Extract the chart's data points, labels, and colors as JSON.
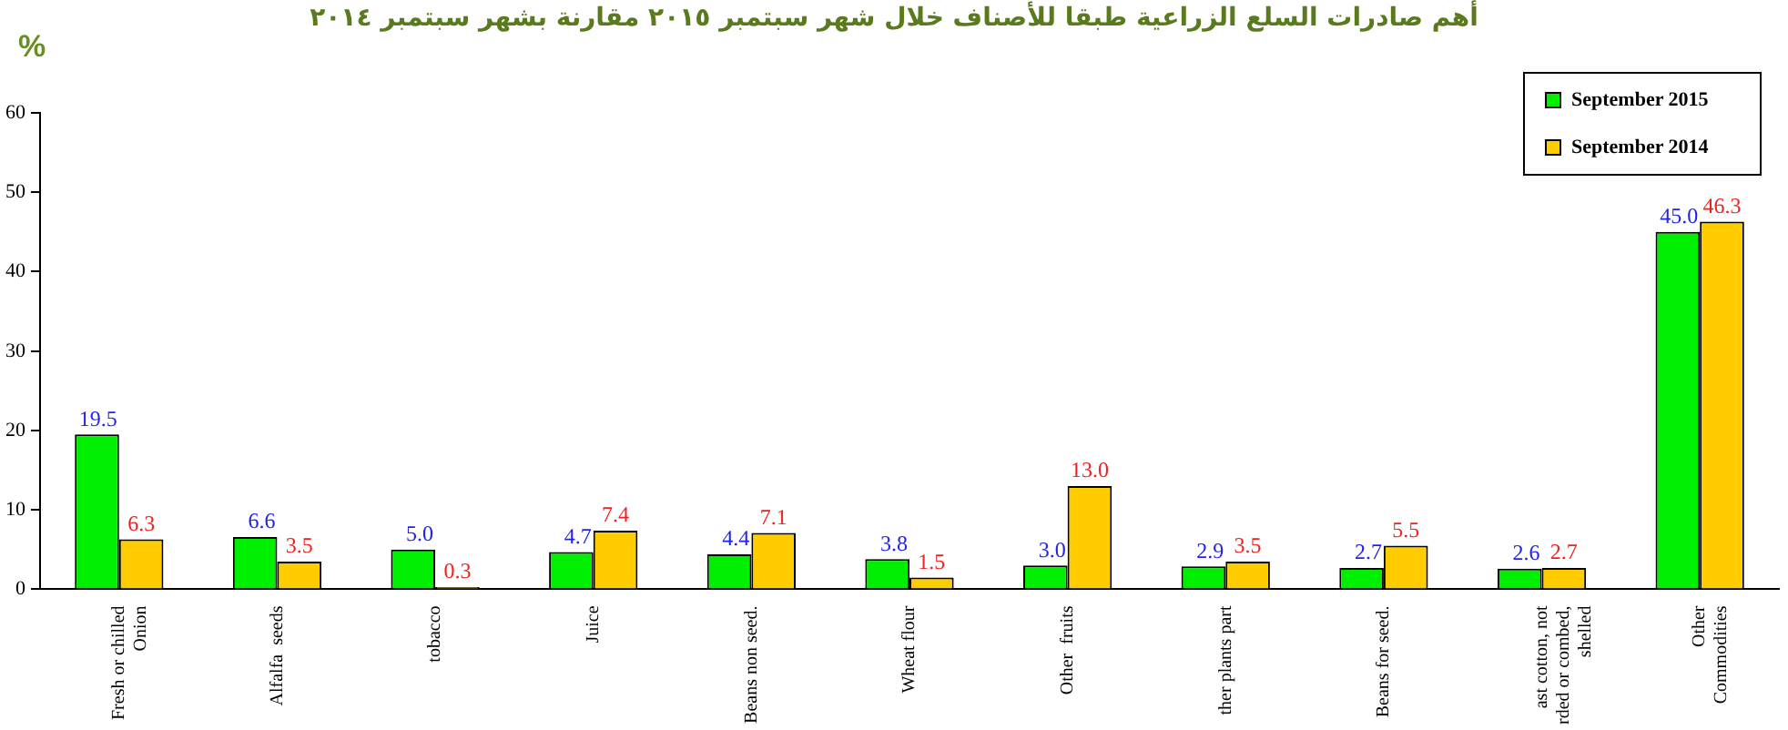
{
  "chart_data": {
    "type": "bar",
    "title": "أهم صادرات السلع الزراعية طبقا للأصناف خلال شهر سبتمبر ٢٠١٥ مقارنة بشهر سبتمبر ٢٠١٤",
    "ylabel": "%",
    "categories": [
      "Fresh or chilled\nOnion",
      "Alfalfa  seeds",
      "tobacco",
      "Juice",
      "Beans non seed.",
      "Wheat flour",
      "Other  fruits",
      "ther plants part",
      "Beans for seed.",
      "ast cotton, not\nrded or combed,\nshelled",
      "Other\nCommodities"
    ],
    "series": [
      {
        "name": "September 2015",
        "color": "#00ee00",
        "values": [
          19.5,
          6.6,
          5,
          4.7,
          4.4,
          3.8,
          3,
          2.9,
          2.7,
          2.6,
          45
        ],
        "value_labels": [
          "19.5",
          "6.6",
          "5.0",
          "4.7",
          "4.4",
          "3.8",
          "3.0",
          "2.9",
          "2.7",
          "2.6",
          "45.0"
        ]
      },
      {
        "name": "September 2014",
        "color": "#ffcc00",
        "values": [
          6.3,
          3.5,
          0.3,
          7.4,
          7.1,
          1.5,
          13,
          3.5,
          5.5,
          2.7,
          46.3
        ],
        "value_labels": [
          "6.3",
          "3.5",
          "0.3",
          "7.4",
          "7.1",
          "1.5",
          "13.0",
          "3.5",
          "5.5",
          "2.7",
          "46.3"
        ]
      }
    ],
    "ylim": [
      0,
      60
    ],
    "yticks": [
      0,
      10,
      20,
      30,
      40,
      50,
      60
    ],
    "grid": false,
    "legend": "top right"
  }
}
